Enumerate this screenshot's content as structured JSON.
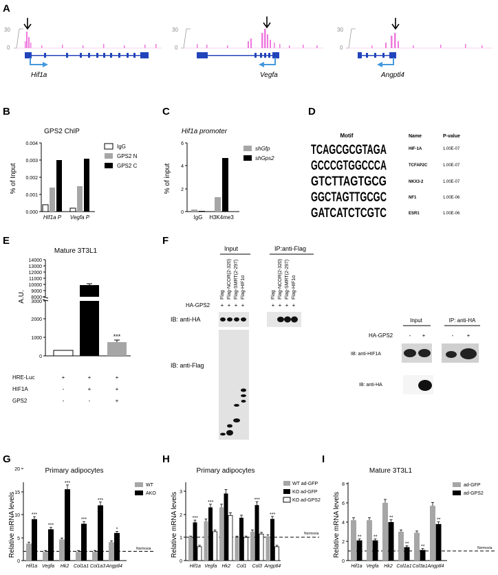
{
  "panel_letters": [
    "A",
    "B",
    "C",
    "D",
    "E",
    "F",
    "G",
    "H",
    "I"
  ],
  "A": {
    "scale_top": "30",
    "scale_bottom": "0",
    "genes": [
      "Hif1a",
      "Vegfa",
      "Angptl4"
    ]
  },
  "B": {
    "title": "GPS2 ChIP",
    "ylabel": "% of Input",
    "yticks": [
      "0.000",
      "0.001",
      "0.002",
      "0.003",
      "0.004"
    ],
    "categories": [
      "Hif1a P",
      "Vegfa P"
    ],
    "legend": [
      "IgG",
      "GPS2 N",
      "GPS2 C"
    ],
    "colors": [
      "#ffffff",
      "#a6a6a6",
      "#000000"
    ]
  },
  "C": {
    "title": "Hif1a promoter",
    "ylabel": "% of input",
    "yticks": [
      "0",
      "2",
      "4",
      "6"
    ],
    "categories": [
      "IgG",
      "H3K4me3"
    ],
    "legend": [
      "shGfp",
      "shGps2"
    ],
    "colors": [
      "#a6a6a6",
      "#000000"
    ]
  },
  "D": {
    "headers": [
      "Motif",
      "Name",
      "P-value"
    ],
    "rows": [
      {
        "motif": "TCAGCGCGTAGA",
        "name": "HIF-1A",
        "p": "1.00E-07"
      },
      {
        "motif": "GCCCGTGGCCCA",
        "name": "TCFAP2C",
        "p": "1.00E-07"
      },
      {
        "motif": "GTCTTAGTGCG",
        "name": "NKX3-2",
        "p": "1.00E-07"
      },
      {
        "motif": "GGCTAGTTGCGC",
        "name": "NF1",
        "p": "1.00E-06"
      },
      {
        "motif": "GATCATCTCGTC",
        "name": "ESR1",
        "p": "1.00E-06"
      }
    ]
  },
  "E": {
    "title": "Mature 3T3L1",
    "ylabel": "A.U.",
    "yticks_upper": [
      "8000",
      "9000",
      "10000",
      "11000",
      "12000",
      "13000",
      "14000"
    ],
    "yticks_lower": [
      "0",
      "1000",
      "2000",
      "3000"
    ],
    "row_labels": [
      "HRE-Luc",
      "HIF1A",
      "GPS2"
    ],
    "signs": [
      [
        "+",
        "+",
        "+"
      ],
      [
        "-",
        "+",
        "+"
      ],
      [
        "-",
        "-",
        "+"
      ]
    ],
    "sig": "***"
  },
  "F": {
    "input": "Input",
    "ip_flag": "IP:anti-Flag",
    "lanes": [
      "Flag",
      "Flag-NCOR(2-320)",
      "Flag-SMRT(2-297)",
      "Flag-HIF1α"
    ],
    "ha_gps2": "HA-GPS2",
    "plus": "+",
    "minus": "-",
    "ib_ha": "IB: anti-HA",
    "ib_flag": "IB: anti-Flag",
    "ib_hif": "IB: anti-HIF1A",
    "ip_ha": "IP: anti-HA"
  },
  "normoxia": "Normoxia",
  "mrna_ylabel": "Relative mRNA levels",
  "chart_data": [
    {
      "panel": "G",
      "type": "bar",
      "title": "Primary adipocytes",
      "ylabel": "Relative mRNA levels",
      "categories": [
        "Hif1a",
        "Vegfa",
        "Hk2",
        "Col1a1",
        "Col1a3",
        "Angptl4"
      ],
      "yticks": [
        "0",
        "5",
        "10",
        "15",
        "20"
      ],
      "ylim": [
        0,
        20
      ],
      "series": [
        {
          "name": "WT",
          "color": "#a6a6a6",
          "values": [
            3.7,
            1.9,
            4.6,
            1.9,
            1.9,
            4.0
          ]
        },
        {
          "name": "AKO",
          "color": "#000000",
          "values": [
            9.0,
            6.8,
            15.5,
            8.0,
            12.0,
            6.0
          ]
        }
      ],
      "sig": [
        "***",
        "***",
        "***",
        "***",
        "***",
        "*"
      ]
    },
    {
      "panel": "H",
      "type": "bar",
      "title": "Primary adipocytes",
      "ylabel": "Relative mRNA levels",
      "categories": [
        "Hif1a",
        "Vegfa",
        "Hk2",
        "Col1",
        "Col3",
        "Angptl4"
      ],
      "yticks": [
        "0",
        "1",
        "2",
        "3"
      ],
      "ylim": [
        0,
        3
      ],
      "series": [
        {
          "name": "WT ad-GFP",
          "color": "#a6a6a6",
          "values": [
            1.0,
            1.7,
            2.3,
            1.0,
            1.25,
            1.05
          ]
        },
        {
          "name": "KO ad-GFP",
          "color": "#000000",
          "values": [
            1.65,
            2.3,
            2.9,
            1.85,
            2.4,
            1.8
          ]
        },
        {
          "name": "KO ad-GPS2",
          "color": "#ffffff",
          "values": [
            0.6,
            1.25,
            1.95,
            1.0,
            1.15,
            0.6
          ]
        }
      ],
      "sig": [
        "***",
        "***",
        "",
        "",
        "***",
        "***"
      ]
    },
    {
      "panel": "I",
      "type": "bar",
      "title": "Mature 3T3L1",
      "ylabel": "Relative mRNA levels",
      "categories": [
        "Hif1a",
        "Vegfa",
        "Hk2",
        "Col1a1",
        "Col3a1",
        "Angptl4"
      ],
      "yticks": [
        "0",
        "2",
        "4",
        "6",
        "8"
      ],
      "ylim": [
        0,
        8
      ],
      "series": [
        {
          "name": "ad-GFP",
          "color": "#a6a6a6",
          "values": [
            4.2,
            4.2,
            6.0,
            3.0,
            2.9,
            5.7
          ]
        },
        {
          "name": "ad-GPS2",
          "color": "#000000",
          "values": [
            2.1,
            2.1,
            4.0,
            1.4,
            1.1,
            3.8
          ]
        }
      ],
      "sig": [
        "**",
        "**",
        "**",
        "**",
        "**",
        "**"
      ]
    }
  ]
}
